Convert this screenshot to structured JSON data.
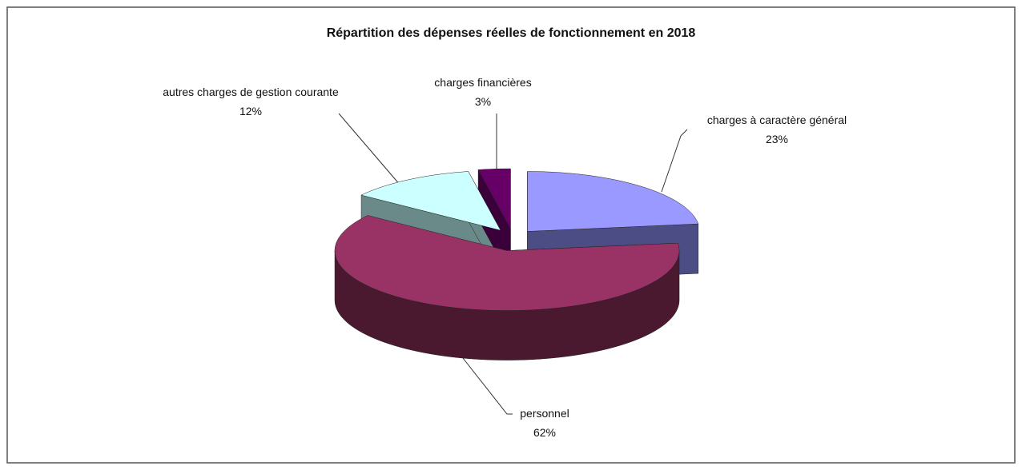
{
  "chart_data": {
    "type": "pie3d",
    "title": "Répartition des dépenses réelles de fonctionnement en 2018",
    "categories": [
      "charges à  caractère général",
      "personnel",
      "autres charges de gestion courante",
      "charges financières"
    ],
    "values": [
      23,
      62,
      12,
      3
    ],
    "value_labels": [
      "23%",
      "62%",
      "12%",
      "3%"
    ],
    "colors": [
      "#9999ff",
      "#993366",
      "#ccffff",
      "#660066"
    ],
    "side_colors": [
      "#4d4d85",
      "#4a1930",
      "#6a8a8a",
      "#3a003a"
    ]
  }
}
